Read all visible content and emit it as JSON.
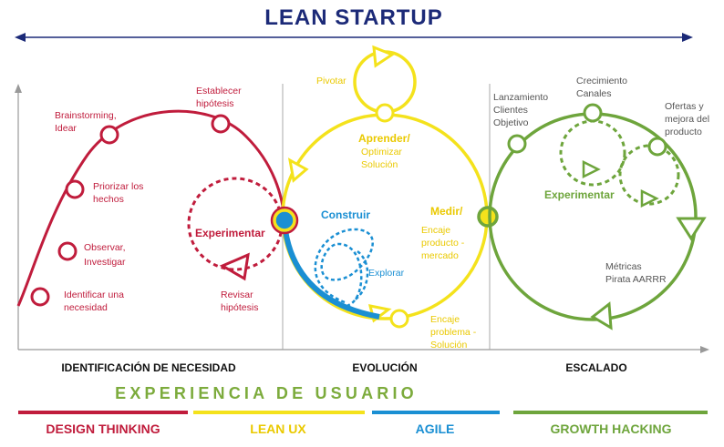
{
  "title": "LEAN STARTUP",
  "columns": {
    "identificacion": "IDENTIFICACIÓN DE NECESIDAD",
    "evolucion": "EVOLUCIÓN",
    "escalado": "ESCALADO"
  },
  "red_stage": {
    "steps": {
      "s1a": "Identificar una",
      "s1b": "necesidad",
      "s2a": "Observar,",
      "s2b": "Investigar",
      "s3a": "Priorizar los",
      "s3b": "hechos",
      "s4a": "Brainstorming,",
      "s4b": "Idear",
      "s5a": "Establecer",
      "s5b": "hipótesis"
    },
    "experimentar": "Experimentar",
    "revisar_a": "Revisar",
    "revisar_b": "hipótesis"
  },
  "yellow_stage": {
    "pivotar": "Pivotar",
    "aprender": "Aprender/",
    "optimizar_a": "Optimizar",
    "optimizar_b": "Solución",
    "medir": "Medir/",
    "encaje_pm_a": "Encaje",
    "encaje_pm_b": "producto -",
    "encaje_pm_c": "mercado",
    "encaje_ps_a": "Encaje",
    "encaje_ps_b": "problema -",
    "encaje_ps_c": "Solución"
  },
  "blue_stage": {
    "construir": "Construir",
    "explorar": "Explorar"
  },
  "green_stage": {
    "lanzamiento_a": "Lanzamiento",
    "lanzamiento_b": "Clientes",
    "lanzamiento_c": "Objetivo",
    "crecimiento_a": "Crecimiento",
    "crecimiento_b": "Canales",
    "ofertas_a": "Ofertas y",
    "ofertas_b": "mejora del",
    "ofertas_c": "producto",
    "experimentar": "Experimentar",
    "metricas_a": "Métricas",
    "metricas_b": "Pirata AARRR"
  },
  "experiencia": "EXPERIENCIA DE USUARIO",
  "legend": {
    "design": "DESIGN THINKING",
    "leanux": "LEAN UX",
    "agile": "AGILE",
    "growth": "GROWTH HACKING"
  },
  "colors": {
    "red": "#c01c3c",
    "yellow": "#f4e21c",
    "blue": "#1a8fd3",
    "green": "#6ea53c",
    "navy": "#1c2a78"
  }
}
